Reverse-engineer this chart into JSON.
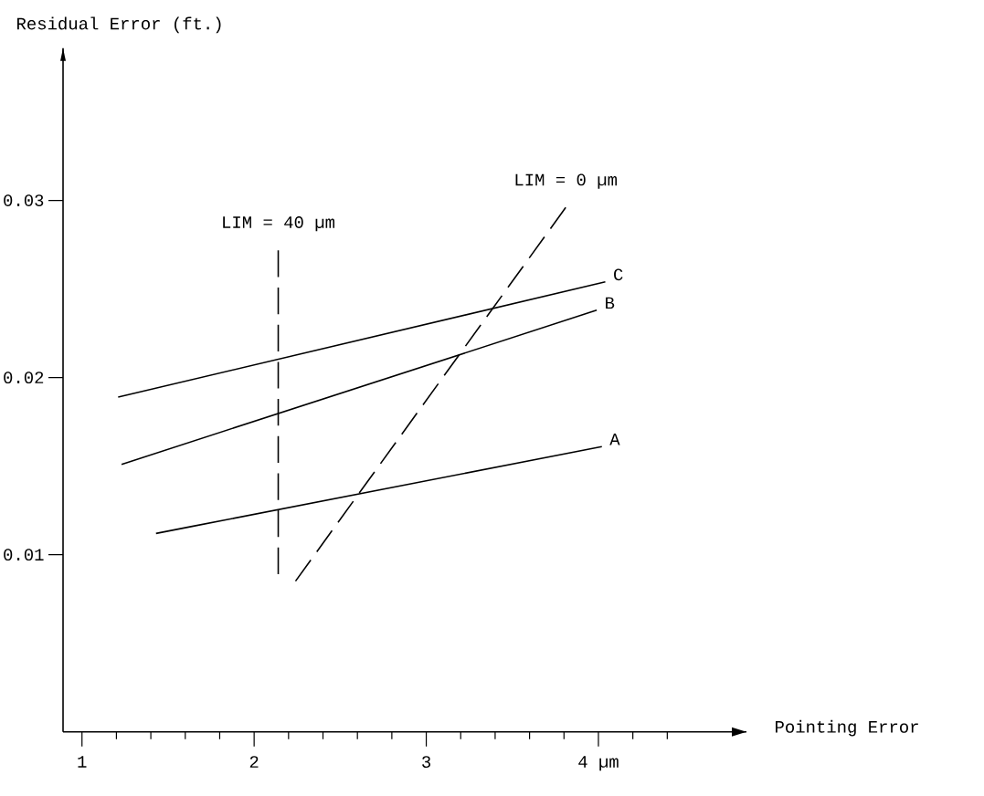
{
  "chart_data": {
    "type": "line",
    "xlabel": "Pointing Error",
    "ylabel": "Residual Error (ft.)",
    "xlim": [
      0.89,
      4.86
    ],
    "ylim": [
      0,
      0.0386
    ],
    "xticks": [
      1,
      2,
      3,
      {
        "value": 4,
        "label": "4 µm"
      },
      {
        "value": 1.2,
        "label": null
      },
      {
        "value": 1.4,
        "label": null
      },
      {
        "value": 1.6,
        "label": null
      },
      {
        "value": 1.8,
        "label": null
      },
      {
        "value": 2.2,
        "label": null
      },
      {
        "value": 2.4,
        "label": null
      },
      {
        "value": 2.6,
        "label": null
      },
      {
        "value": 2.8,
        "label": null
      },
      {
        "value": 3.2,
        "label": null
      },
      {
        "value": 3.4,
        "label": null
      },
      {
        "value": 3.6,
        "label": null
      },
      {
        "value": 3.8,
        "label": null
      },
      {
        "value": 4.2,
        "label": null
      },
      {
        "value": 4.4,
        "label": null
      }
    ],
    "yticks": [
      0.01,
      0.02,
      0.03
    ],
    "series": [
      {
        "name": "A",
        "color": "#000000",
        "line_style": "solid",
        "x": [
          1.43,
          1.64,
          4.02
        ],
        "values": [
          0.0112,
          0.0116,
          0.0161
        ]
      },
      {
        "name": "B",
        "color": "#000000",
        "line_style": "solid",
        "x": [
          1.23,
          3.99
        ],
        "values": [
          0.0151,
          0.0238
        ]
      },
      {
        "name": "C",
        "color": "#000000",
        "line_style": "solid",
        "x": [
          1.21,
          4.04
        ],
        "values": [
          0.0189,
          0.0254
        ]
      },
      {
        "name": "LIM = 40 µm",
        "color": "#000000",
        "line_style": "dashed",
        "x": [
          2.14,
          2.14
        ],
        "values": [
          0.0089,
          0.0272
        ]
      },
      {
        "name": "LIM = 0 µm",
        "color": "#000000",
        "line_style": "dashed",
        "x": [
          3.81,
          2.24
        ],
        "values": [
          0.0296,
          0.0085
        ]
      }
    ]
  }
}
